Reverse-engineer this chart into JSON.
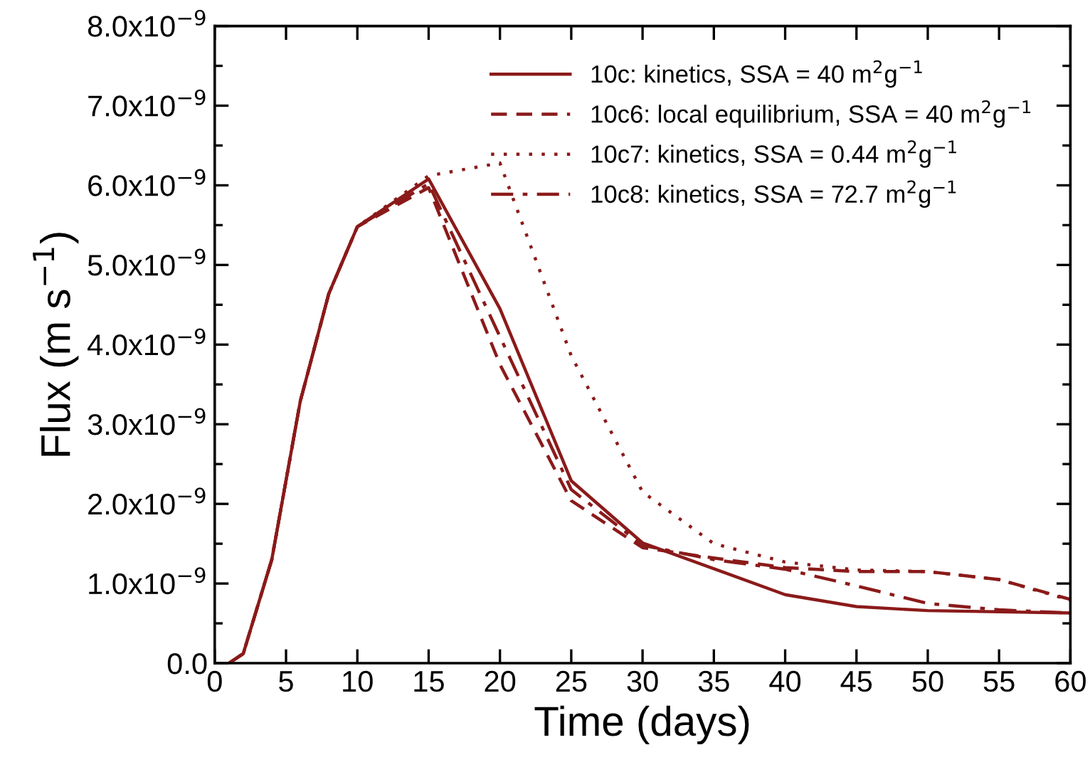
{
  "chart_data": {
    "type": "line",
    "xlabel": "Time (days)",
    "ylabel": "Flux (m s$^{−1}$)",
    "xlim": [
      0,
      60
    ],
    "xticks": [
      0,
      5,
      10,
      15,
      20,
      25,
      30,
      35,
      40,
      45,
      50,
      55,
      60
    ],
    "ylim": [
      0,
      8e-09
    ],
    "yticks": [
      {
        "value": 0,
        "label": "0.0"
      },
      {
        "value": 1e-09,
        "label": "1.0x10$^{−9}$"
      },
      {
        "value": 2e-09,
        "label": "2.0x10$^{−9}$"
      },
      {
        "value": 3e-09,
        "label": "3.0x10$^{−9}$"
      },
      {
        "value": 4e-09,
        "label": "4.0x10$^{−9}$"
      },
      {
        "value": 5e-09,
        "label": "5.0x10$^{−9}$"
      },
      {
        "value": 6e-09,
        "label": "6.0x10$^{−9}$"
      },
      {
        "value": 7e-09,
        "label": "7.0x10$^{−9}$"
      },
      {
        "value": 8e-09,
        "label": "8.0x10$^{−9}$"
      }
    ],
    "grid": false,
    "legend": "top right",
    "marker": "none",
    "series": [
      {
        "name": "10c: kinetics, SSA = 40 m$^{2}$g$^{−1}$",
        "color": "#8b1a1a",
        "line_style": "solid",
        "x": [
          1,
          2,
          4,
          6,
          8,
          10,
          15,
          20,
          25,
          30,
          40,
          45,
          50,
          60
        ],
        "values": [
          0,
          1.2e-10,
          1.3e-09,
          3.29e-09,
          4.64e-09,
          5.48e-09,
          6.08e-09,
          4.45e-09,
          2.29e-09,
          1.51e-09,
          8.6e-10,
          7.1e-10,
          6.6e-10,
          6.3e-10
        ]
      },
      {
        "name": "10c6: local equilibrium, SSA = 40 m$^{2}$g$^{−1}$",
        "color": "#8b1a1a",
        "line_style": "dashed",
        "x": [
          1,
          2,
          4,
          6,
          8,
          10,
          15,
          20,
          25,
          30,
          35,
          40,
          45,
          50,
          55,
          60
        ],
        "values": [
          0,
          1.2e-10,
          1.3e-09,
          3.29e-09,
          4.64e-09,
          5.48e-09,
          5.97e-09,
          3.75e-09,
          2.04e-09,
          1.45e-09,
          1.32e-09,
          1.2e-09,
          1.15e-09,
          1.15e-09,
          1.05e-09,
          8e-10
        ]
      },
      {
        "name": "10c7: kinetics, SSA = 0.44 m$^{2}$g$^{−1}$",
        "color": "#8b1a1a",
        "line_style": "dotted",
        "x": [
          1,
          2,
          4,
          6,
          8,
          10,
          15,
          20,
          25,
          30,
          35,
          40,
          45,
          50,
          55,
          60
        ],
        "values": [
          0,
          1.2e-10,
          1.3e-09,
          3.29e-09,
          4.64e-09,
          5.48e-09,
          6.12e-09,
          6.28e-09,
          3.86e-09,
          2.15e-09,
          1.5e-09,
          1.27e-09,
          1.17e-09,
          1.15e-09,
          1.05e-09,
          7.9e-10
        ]
      },
      {
        "name": "10c8: kinetics, SSA = 72.7 m$^{2}$g$^{−1}$",
        "color": "#8b1a1a",
        "line_style": "dashdot",
        "x": [
          1,
          2,
          4,
          6,
          8,
          10,
          15,
          20,
          25,
          30,
          35,
          40,
          45,
          50,
          55,
          60
        ],
        "values": [
          0,
          1.2e-10,
          1.3e-09,
          3.29e-09,
          4.64e-09,
          5.48e-09,
          6.02e-09,
          4.1e-09,
          2.18e-09,
          1.48e-09,
          1.3e-09,
          1.18e-09,
          9.7e-10,
          7.5e-10,
          6.7e-10,
          6.3e-10
        ]
      }
    ]
  }
}
